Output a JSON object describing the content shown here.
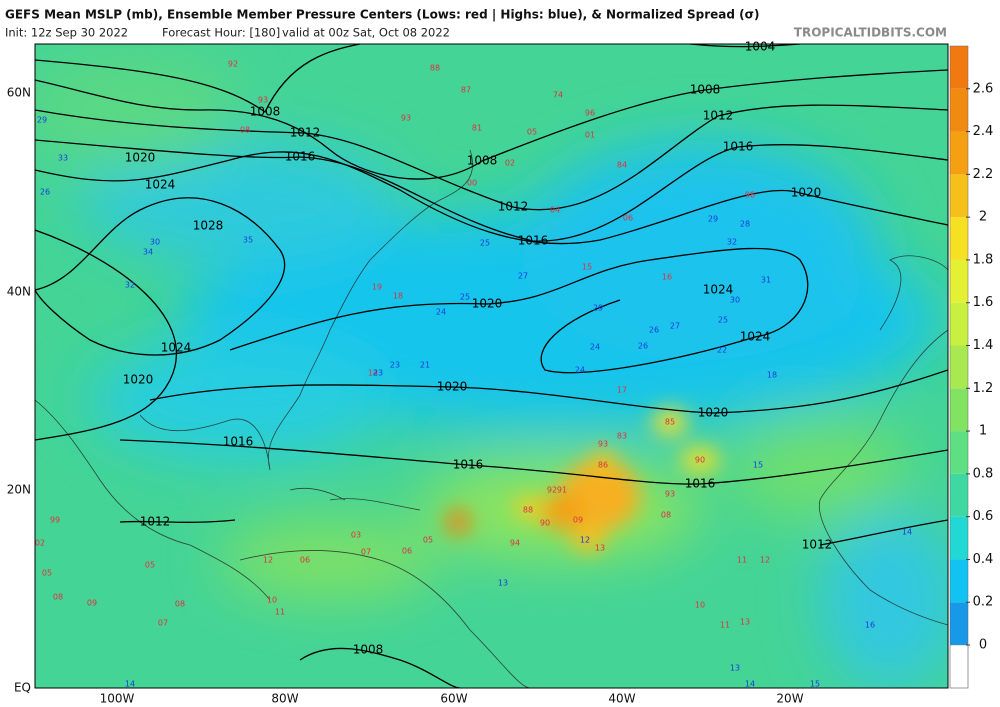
{
  "header": {
    "title": "GEFS Mean MSLP (mb), Ensemble Member Pressure Centers (Lows: red | Highs: blue), & Normalized Spread (σ)",
    "init": "Init: 12z Sep 30 2022",
    "forecast": "Forecast Hour: [180]",
    "valid": "valid at 00z Sat, Oct 08 2022",
    "credit": "TROPICALTIDBITS.COM"
  },
  "axes": {
    "lat_labels": [
      "60N",
      "40N",
      "20N",
      "EQ"
    ],
    "lon_labels": [
      "100W",
      "80W",
      "60W",
      "40W",
      "20W"
    ]
  },
  "colorbar": {
    "lim": [
      0,
      2.8
    ],
    "ticks": [
      0,
      0.2,
      0.4,
      0.6,
      0.8,
      1,
      1.2,
      1.4,
      1.6,
      1.8,
      2,
      2.2,
      2.4,
      2.6
    ]
  },
  "isobar_labels": [
    "1004",
    "1008",
    "1008",
    "1008",
    "1008",
    "1012",
    "1012",
    "1012",
    "1012",
    "1012",
    "1016",
    "1016",
    "1016",
    "1016",
    "1016",
    "1016",
    "1020",
    "1020",
    "1020",
    "1020",
    "1020",
    "1020",
    "1024",
    "1024",
    "1024",
    "1024",
    "1028"
  ],
  "lows": [
    "92",
    "93",
    "08",
    "88",
    "87",
    "74",
    "96",
    "05",
    "01",
    "93",
    "84",
    "81",
    "00",
    "02",
    "06",
    "04",
    "98",
    "19",
    "18",
    "16",
    "15",
    "14",
    "17",
    "85",
    "83",
    "93",
    "86",
    "90",
    "92",
    "91",
    "88",
    "90",
    "09",
    "93",
    "94",
    "13",
    "08",
    "03",
    "07",
    "06",
    "05",
    "11",
    "12",
    "10",
    "13",
    "11",
    "99",
    "02",
    "05",
    "08",
    "09",
    "07",
    "08",
    "10",
    "11",
    "12",
    "06",
    "05"
  ],
  "highs": [
    "29",
    "33",
    "26",
    "30",
    "34",
    "35",
    "32",
    "25",
    "24",
    "23",
    "27",
    "25",
    "21",
    "23",
    "24",
    "26",
    "28",
    "29",
    "29",
    "27",
    "26",
    "24",
    "22",
    "25",
    "31",
    "32",
    "30",
    "18",
    "15",
    "13",
    "14",
    "12",
    "13",
    "14",
    "15",
    "16",
    "14"
  ]
}
